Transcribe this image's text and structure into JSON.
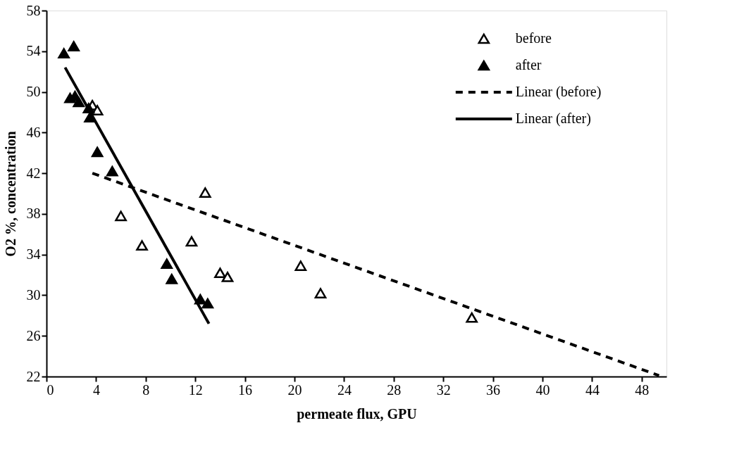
{
  "chart_data": {
    "type": "scatter",
    "xlabel": "permeate flux, GPU",
    "ylabel": "O2 %, concentration",
    "xlim": [
      0,
      50
    ],
    "xticks": [
      0,
      4,
      8,
      12,
      16,
      20,
      24,
      28,
      32,
      36,
      40,
      44,
      48
    ],
    "ylim": [
      22,
      58
    ],
    "yticks": [
      22,
      26,
      30,
      34,
      38,
      42,
      46,
      50,
      54,
      58
    ],
    "grid": false,
    "legend": "top right",
    "series": [
      {
        "name": "before",
        "marker": "triangle",
        "color": "#000000",
        "x": [
          3.7,
          4.1,
          12.8,
          6.0,
          7.7,
          11.7,
          14.0,
          14.6,
          20.5,
          22.1,
          34.3
        ],
        "values": [
          48.7,
          48.2,
          40.1,
          37.8,
          34.9,
          35.3,
          32.2,
          31.8,
          32.9,
          30.2,
          27.8
        ]
      },
      {
        "name": "after",
        "marker": "triangle",
        "color": "#000000",
        "x": [
          1.4,
          2.2,
          1.9,
          2.3,
          2.6,
          3.4,
          3.5,
          4.1,
          5.3,
          9.7,
          10.1,
          12.4,
          13.0
        ],
        "values": [
          53.8,
          54.5,
          49.4,
          49.6,
          49.0,
          48.4,
          47.5,
          44.1,
          42.2,
          33.1,
          31.6,
          29.6,
          29.2
        ]
      },
      {
        "name": "Linear (before)",
        "type": "line",
        "line_style": "dashed",
        "color": "#000000",
        "x": [
          3.7,
          49.4
        ],
        "values": [
          42.0,
          22.1
        ]
      },
      {
        "name": "Linear (after)",
        "type": "line",
        "line_style": "solid",
        "color": "#000000",
        "x": [
          1.5,
          13.1
        ],
        "values": [
          52.4,
          27.2
        ]
      }
    ]
  }
}
